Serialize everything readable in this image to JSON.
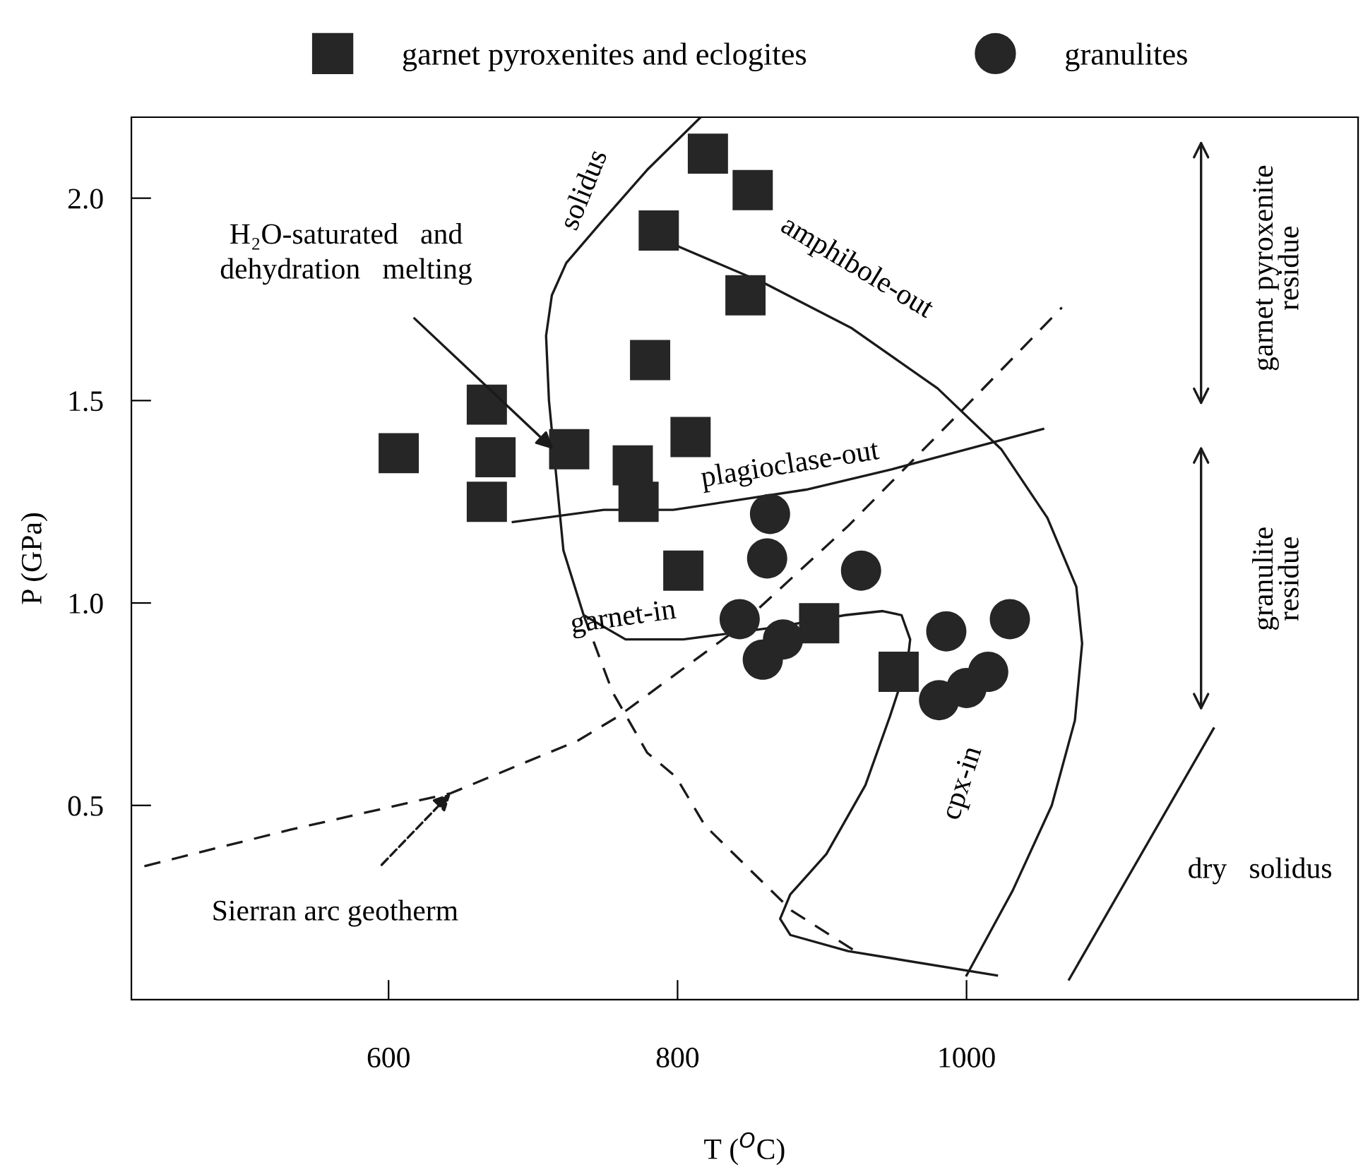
{
  "chart_data": {
    "type": "scatter",
    "xlabel": "T ($^{O}$C)",
    "ylabel": "P (GPa)",
    "xlim": [
      422,
      1271
    ],
    "ylim": [
      0.02,
      2.2
    ],
    "xticks": [
      600,
      800,
      1000
    ],
    "yticks": [
      0.5,
      {
        "value": 1,
        "label": "1.0"
      },
      1.5,
      {
        "value": 2,
        "label": "2.0"
      }
    ],
    "grid": false,
    "legend": "top",
    "series": [
      {
        "name": "garnet pyroxenites and eclogites",
        "marker": "square",
        "color": "#262626",
        "x": [
          607,
          668,
          674,
          668,
          725,
          769,
          773,
          781,
          787,
          809,
          821,
          852,
          847,
          804,
          898,
          953
        ],
        "values": [
          1.37,
          1.49,
          1.36,
          1.25,
          1.38,
          1.34,
          1.25,
          1.6,
          1.92,
          1.41,
          2.11,
          2.02,
          1.76,
          1.08,
          0.95,
          0.83
        ]
      },
      {
        "name": "granulites",
        "marker": "circle",
        "color": "#262626",
        "x": [
          864,
          862,
          927,
          843,
          873,
          859,
          986,
          1030,
          1015,
          1000,
          981
        ],
        "values": [
          1.22,
          1.11,
          1.08,
          0.96,
          0.91,
          0.86,
          0.93,
          0.96,
          0.83,
          0.79,
          0.76
        ]
      },
      {
        "type": "line",
        "line_style": "solid",
        "color": "#1a1a1a",
        "x": [
          816,
          779,
          747,
          723,
          713,
          709,
          711,
          721,
          735,
          764,
          804,
          868,
          916,
          942,
          955,
          961,
          959,
          947,
          930,
          903,
          878,
          871,
          878,
          918,
          1021
        ],
        "values": [
          2.2,
          2.07,
          1.94,
          1.84,
          1.76,
          1.66,
          1.5,
          1.13,
          0.97,
          0.91,
          0.91,
          0.94,
          0.97,
          0.98,
          0.97,
          0.91,
          0.85,
          0.72,
          0.55,
          0.38,
          0.28,
          0.22,
          0.18,
          0.14,
          0.08
        ]
      },
      {
        "type": "line",
        "line_style": "solid",
        "color": "#1a1a1a",
        "x": [
          787,
          801,
          860,
          920,
          980,
          1024,
          1056,
          1076,
          1080,
          1075,
          1059,
          1032,
          1000
        ],
        "values": [
          1.92,
          1.88,
          1.79,
          1.68,
          1.53,
          1.38,
          1.21,
          1.04,
          0.9,
          0.71,
          0.5,
          0.29,
          0.08
        ]
      },
      {
        "type": "line",
        "line_style": "solid",
        "color": "#1a1a1a",
        "x": [
          686,
          749,
          797,
          889,
          948,
          1053
        ],
        "values": [
          1.2,
          1.23,
          1.23,
          1.28,
          1.33,
          1.43
        ]
      },
      {
        "type": "line",
        "line_style": "dashed",
        "color": "#1a1a1a",
        "x": [
          431,
          532,
          643,
          731,
          759,
          839,
          918,
          998,
          1066
        ],
        "values": [
          0.35,
          0.44,
          0.53,
          0.66,
          0.72,
          0.93,
          1.19,
          1.48,
          1.73
        ]
      },
      {
        "type": "line",
        "line_style": "dashed",
        "color": "#1a1a1a",
        "x": [
          735,
          755,
          779,
          799,
          819,
          879,
          923
        ],
        "values": [
          0.97,
          0.78,
          0.63,
          0.57,
          0.45,
          0.24,
          0.14
        ]
      },
      {
        "type": "line",
        "line_style": "solid",
        "color": "#1a1a1a",
        "x": [
          1071,
          1171
        ],
        "values": [
          0.07,
          0.69
        ]
      }
    ],
    "annotations": [
      "solidus",
      "amphibole-out",
      "plagioclase-out",
      "garnet-in",
      "cpx-in",
      "dry   solidus",
      {
        "text": "H₂O-saturated   and\ndehydration   melting",
        "x": 714,
        "y": 1.38
      },
      {
        "text": "Sierran arc geotherm",
        "x": 643,
        "y": 0.53
      },
      "garnet pyroxenite\nresidue",
      "granulite\nresidue"
    ]
  }
}
